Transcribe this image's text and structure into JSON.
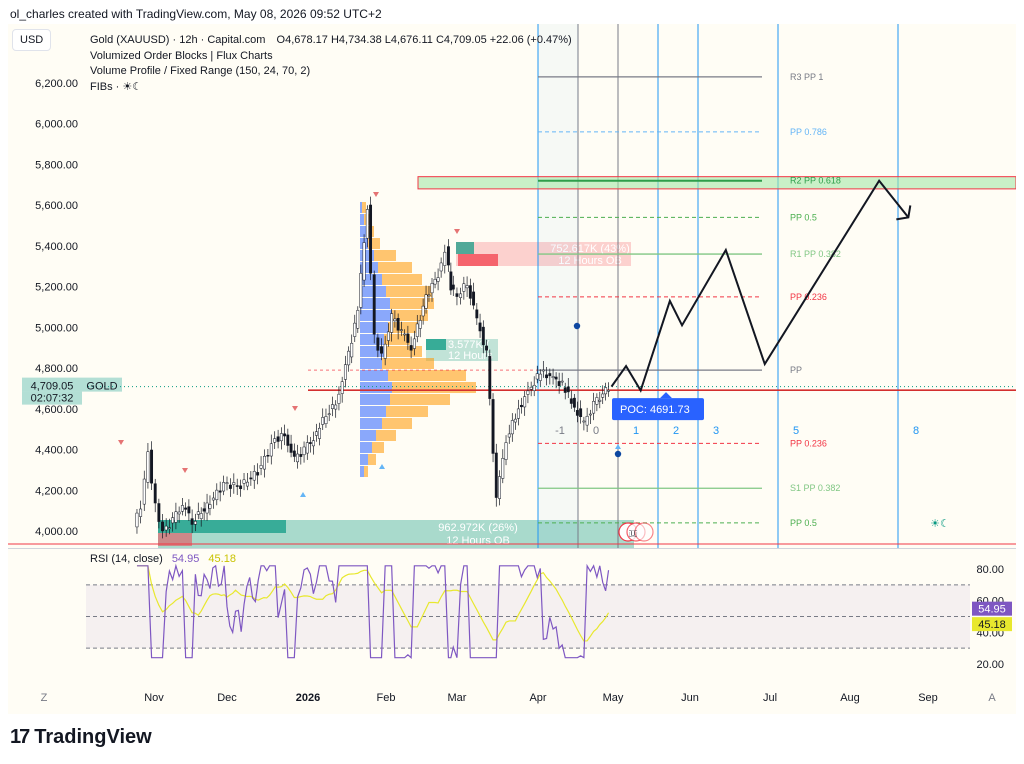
{
  "header": "ol_charles created with TradingView.com, May 08, 2026 09:52 UTC+2",
  "currency_button": "USD",
  "legend": {
    "line1_title": "Gold (XAUUSD) · 12h · Capital.com",
    "line1_values": "O4,678.17  H4,734.38  L4,676.11  C4,709.05  +22.06 (+0.47%)",
    "line2": "Volumized Order Blocks | Flux Charts",
    "line3": "Volume Profile / Fixed Range (150, 24, 70, 2)",
    "line4": "FIBs · ☀☾"
  },
  "price_tag": {
    "price": "4,709.05",
    "timer": "02:07:32",
    "symbol": "GOLD"
  },
  "poc_label": "POC: 4691.73",
  "order_blocks": {
    "top": {
      "line1": "752.617K (43%)",
      "line2": "12 Hours OB"
    },
    "mid": {
      "line1": "3.577K (",
      "line2": "12 Hours"
    },
    "bottom": {
      "line1": "962.972K (26%)",
      "line2": "12 Hours OB"
    }
  },
  "rsi": {
    "title": "RSI (14, close)",
    "value1": "54.95",
    "value2": "45.18"
  },
  "brand": "TradingView",
  "colors": {
    "bull": "#089981",
    "bear": "#f23645",
    "pivot_blue": "#2196f3",
    "rsi": "#7e57c2",
    "rsi_ma": "#e8e82e"
  },
  "chart_data": {
    "type": "candlestick",
    "symbol": "Gold (XAUUSD)",
    "timeframe": "12h",
    "y_ticks": [
      "6,200.00",
      "6,000.00",
      "5,800.00",
      "5,600.00",
      "5,400.00",
      "5,200.00",
      "5,000.00",
      "4,800.00",
      "4,600.00",
      "4,400.00",
      "4,200.00",
      "4,000.00"
    ],
    "x_ticks": [
      "Z",
      "Nov",
      "Dec",
      "2026",
      "Feb",
      "Mar",
      "Apr",
      "May",
      "Jun",
      "Jul",
      "Aug",
      "Sep",
      "A"
    ],
    "ylim": [
      3940,
      6260
    ],
    "last": {
      "open": 4678.17,
      "high": 4734.38,
      "low": 4676.11,
      "close": 4709.05,
      "change": "+22.06 (+0.47%)"
    },
    "price_path": [
      [
        "2025-10-25",
        4020
      ],
      [
        "2025-10-28",
        4120
      ],
      [
        "2025-10-31",
        4380
      ],
      [
        "2025-11-03",
        4120
      ],
      [
        "2025-11-06",
        4000
      ],
      [
        "2025-11-10",
        4050
      ],
      [
        "2025-11-14",
        4130
      ],
      [
        "2025-11-18",
        4050
      ],
      [
        "2025-11-24",
        4120
      ],
      [
        "2025-12-01",
        4230
      ],
      [
        "2025-12-08",
        4220
      ],
      [
        "2025-12-15",
        4290
      ],
      [
        "2025-12-22",
        4450
      ],
      [
        "2025-12-26",
        4470
      ],
      [
        "2025-12-30",
        4350
      ],
      [
        "2026-01-03",
        4400
      ],
      [
        "2026-01-08",
        4470
      ],
      [
        "2026-01-12",
        4580
      ],
      [
        "2026-01-16",
        4620
      ],
      [
        "2026-01-20",
        4800
      ],
      [
        "2026-01-25",
        5080
      ],
      [
        "2026-01-29",
        5590
      ],
      [
        "2026-02-01",
        4950
      ],
      [
        "2026-02-04",
        4860
      ],
      [
        "2026-02-08",
        5050
      ],
      [
        "2026-02-12",
        4980
      ],
      [
        "2026-02-16",
        4900
      ],
      [
        "2026-02-22",
        5150
      ],
      [
        "2026-02-27",
        5260
      ],
      [
        "2026-03-02",
        5380
      ],
      [
        "2026-03-04",
        5200
      ],
      [
        "2026-03-07",
        5150
      ],
      [
        "2026-03-11",
        5220
      ],
      [
        "2026-03-15",
        5040
      ],
      [
        "2026-03-19",
        4870
      ],
      [
        "2026-03-23",
        4160
      ],
      [
        "2026-03-27",
        4450
      ],
      [
        "2026-04-01",
        4600
      ],
      [
        "2026-04-05",
        4680
      ],
      [
        "2026-04-10",
        4780
      ],
      [
        "2026-04-14",
        4760
      ],
      [
        "2026-04-19",
        4720
      ],
      [
        "2026-04-24",
        4610
      ],
      [
        "2026-04-28",
        4530
      ],
      [
        "2026-05-02",
        4620
      ],
      [
        "2026-05-08",
        4709
      ]
    ],
    "projection_path": [
      [
        "2026-05-08",
        4709
      ],
      [
        "2026-05-14",
        4810
      ],
      [
        "2026-05-20",
        4690
      ],
      [
        "2026-06-01",
        5130
      ],
      [
        "2026-06-06",
        5010
      ],
      [
        "2026-06-24",
        5380
      ],
      [
        "2026-07-10",
        4820
      ],
      [
        "2026-08-26",
        5720
      ],
      [
        "2026-09-07",
        5540
      ]
    ],
    "horizontal_levels": [
      {
        "label": "R3 PP 1",
        "price": 6230
      },
      {
        "label": "PP 0.786",
        "price": 5960
      },
      {
        "label": "R2 PP 0.618",
        "price": 5720
      },
      {
        "label": "PP 0.5",
        "price": 5540
      },
      {
        "label": "R1 PP 0.382",
        "price": 5360
      },
      {
        "label": "PP 0.236",
        "price": 5150
      },
      {
        "label": "PP",
        "price": 4790
      },
      {
        "label": "PP 0.236",
        "price": 4430
      },
      {
        "label": "S1 PP 0.382",
        "price": 4210
      },
      {
        "label": "PP 0.5",
        "price": 4040
      }
    ],
    "fib_time_zones": [
      "-1",
      "0",
      "1",
      "2",
      "3",
      "5",
      "8"
    ],
    "poc": 4691.73,
    "rsi": {
      "length": 14,
      "source": "close",
      "value": 54.95,
      "ma_value": 45.18,
      "levels": [
        70,
        50,
        30
      ],
      "y_ticks": [
        "80.00",
        "60.00",
        "40.00",
        "20.00"
      ]
    }
  }
}
